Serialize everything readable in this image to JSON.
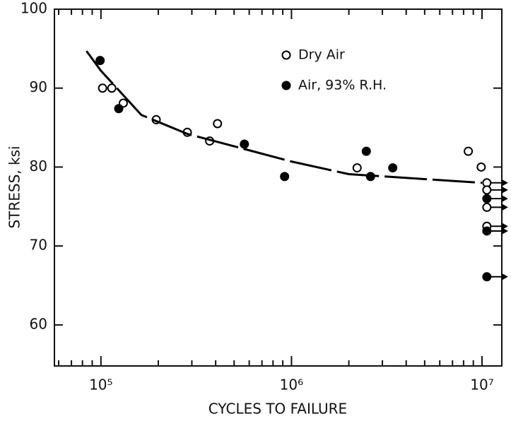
{
  "chart_data": {
    "type": "scatter",
    "xlabel": "CYCLES TO FAILURE",
    "ylabel": "STRESS, ksi",
    "xscale": "log",
    "xlim": [
      57000,
      12700000
    ],
    "xticks": [
      {
        "value": 100000,
        "label": "10⁵"
      },
      {
        "value": 1000000,
        "label": "10⁶"
      },
      {
        "value": 10000000,
        "label": "10⁷"
      }
    ],
    "xminorticks": [
      60000,
      70000,
      80000,
      90000,
      200000,
      300000,
      400000,
      500000,
      600000,
      700000,
      800000,
      900000,
      2000000,
      3000000,
      4000000,
      5000000,
      6000000,
      7000000,
      8000000,
      9000000
    ],
    "ylim": [
      54.8,
      100
    ],
    "yticks": [
      60,
      70,
      80,
      90,
      100
    ],
    "series": [
      {
        "name": "Dry Air",
        "marker": "open",
        "color": "#000000",
        "x": [
          102000,
          114000,
          131000,
          195000,
          284000,
          372000,
          409000,
          2210000,
          8470000,
          9900000,
          10600000,
          10600000,
          10600000,
          10600000
        ],
        "values": [
          90,
          90,
          88.1,
          86,
          84.4,
          83.3,
          85.5,
          79.9,
          82,
          80,
          78,
          77.1,
          74.9,
          72.5
        ],
        "runout": [
          false,
          false,
          false,
          false,
          false,
          false,
          false,
          false,
          false,
          false,
          true,
          true,
          true,
          true
        ]
      },
      {
        "name": "Air, 93% R.H.",
        "marker": "filled",
        "color": "#000000",
        "x": [
          99000,
          124000,
          566000,
          920000,
          2470000,
          2600000,
          3400000,
          10600000,
          10600000,
          10600000
        ],
        "values": [
          93.5,
          87.4,
          82.9,
          78.8,
          82,
          78.8,
          79.9,
          76,
          71.9,
          66.1
        ],
        "runout": [
          false,
          false,
          false,
          false,
          false,
          false,
          false,
          true,
          true,
          true
        ]
      },
      {
        "type": "line",
        "dash": true,
        "color": "#000000",
        "x": [
          84000,
          100000,
          163000,
          284000,
          1000000,
          2000000,
          10000000
        ],
        "values": [
          94.7,
          92.2,
          86.6,
          84.2,
          80.7,
          79.1,
          78
        ]
      }
    ]
  }
}
